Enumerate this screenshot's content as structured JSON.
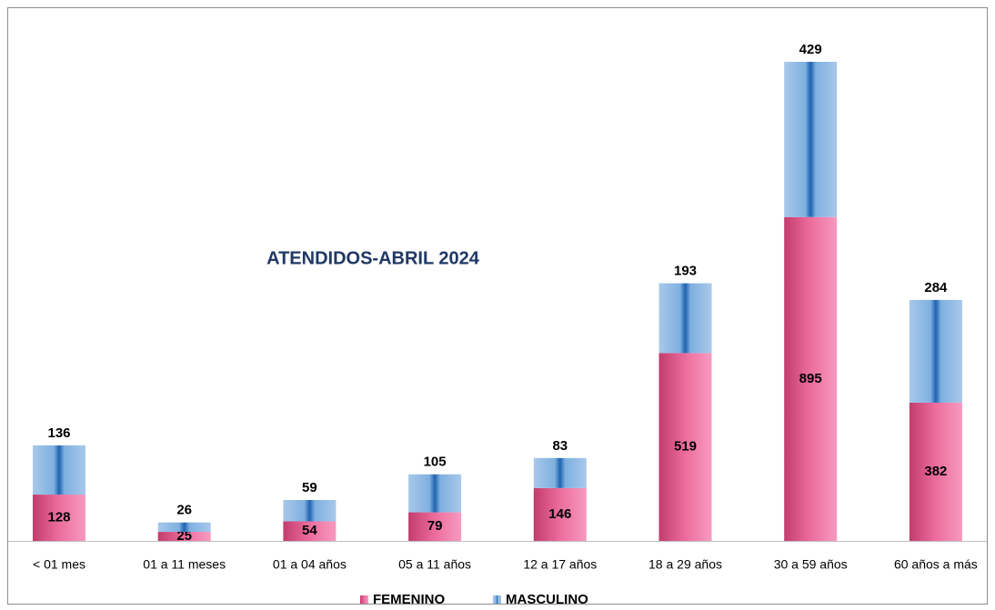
{
  "chart_data": {
    "type": "stacked_bar",
    "title": "ATENDIDOS-ABRIL 2024",
    "categories": [
      "< 01 mes",
      "01 a 11 meses",
      "01 a 04 años",
      "05 a 11 años",
      "12 a 17 años",
      "18 a 29 años",
      "30 a 59 años",
      "60 años a más"
    ],
    "series": [
      {
        "name": "FEMENINO",
        "color": "#ee6a9a",
        "values": [
          128,
          25,
          54,
          79,
          146,
          519,
          895,
          382
        ]
      },
      {
        "name": "MASCULINO",
        "color": "#5b9bd5",
        "values": [
          136,
          26,
          59,
          105,
          83,
          193,
          429,
          284
        ]
      }
    ],
    "legend": "bottom"
  }
}
